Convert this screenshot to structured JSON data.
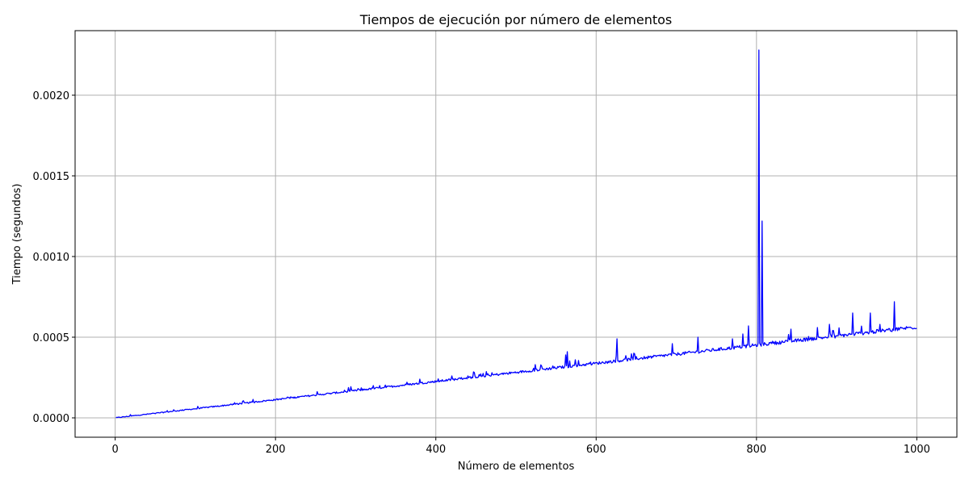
{
  "chart_data": {
    "type": "line",
    "title": "Tiempos de ejecución por número de elementos",
    "xlabel": "Número de elementos",
    "ylabel": "Tiempo (segundos)",
    "xlim": [
      -50,
      1050
    ],
    "ylim": [
      -0.00012,
      0.0024
    ],
    "xticks": [
      0,
      200,
      400,
      600,
      800,
      1000
    ],
    "xtick_labels": [
      "0",
      "200",
      "400",
      "600",
      "800",
      "1000"
    ],
    "yticks": [
      0.0,
      0.0005,
      0.001,
      0.0015,
      0.002
    ],
    "ytick_labels": [
      "0.0000",
      "0.0005",
      "0.0010",
      "0.0015",
      "0.0020"
    ],
    "grid": true,
    "series": [
      {
        "color": "#0000ff",
        "trend": {
          "x_start": 1,
          "x_end": 1000,
          "y_start": 0.0,
          "y_end": 0.00056
        },
        "spikes": [
          {
            "x": 65,
            "y": 4.5e-05
          },
          {
            "x": 102,
            "y": 5.5e-05
          },
          {
            "x": 152,
            "y": 9e-05
          },
          {
            "x": 155,
            "y": 9e-05
          },
          {
            "x": 218,
            "y": 0.00012
          },
          {
            "x": 267,
            "y": 0.00015
          },
          {
            "x": 322,
            "y": 0.0002
          },
          {
            "x": 380,
            "y": 0.00024
          },
          {
            "x": 432,
            "y": 0.00025
          },
          {
            "x": 440,
            "y": 0.00026
          },
          {
            "x": 524,
            "y": 0.00033
          },
          {
            "x": 562,
            "y": 0.00039
          },
          {
            "x": 564,
            "y": 0.00041
          },
          {
            "x": 574,
            "y": 0.00036
          },
          {
            "x": 626,
            "y": 0.00049
          },
          {
            "x": 695,
            "y": 0.00046
          },
          {
            "x": 727,
            "y": 0.0005
          },
          {
            "x": 770,
            "y": 0.00049
          },
          {
            "x": 783,
            "y": 0.00052
          },
          {
            "x": 790,
            "y": 0.00057
          },
          {
            "x": 803,
            "y": 0.00228
          },
          {
            "x": 807,
            "y": 0.00122
          },
          {
            "x": 843,
            "y": 0.00055
          },
          {
            "x": 876,
            "y": 0.00056
          },
          {
            "x": 891,
            "y": 0.00058
          },
          {
            "x": 920,
            "y": 0.00065
          },
          {
            "x": 942,
            "y": 0.00065
          },
          {
            "x": 972,
            "y": 0.00072
          }
        ]
      }
    ]
  }
}
